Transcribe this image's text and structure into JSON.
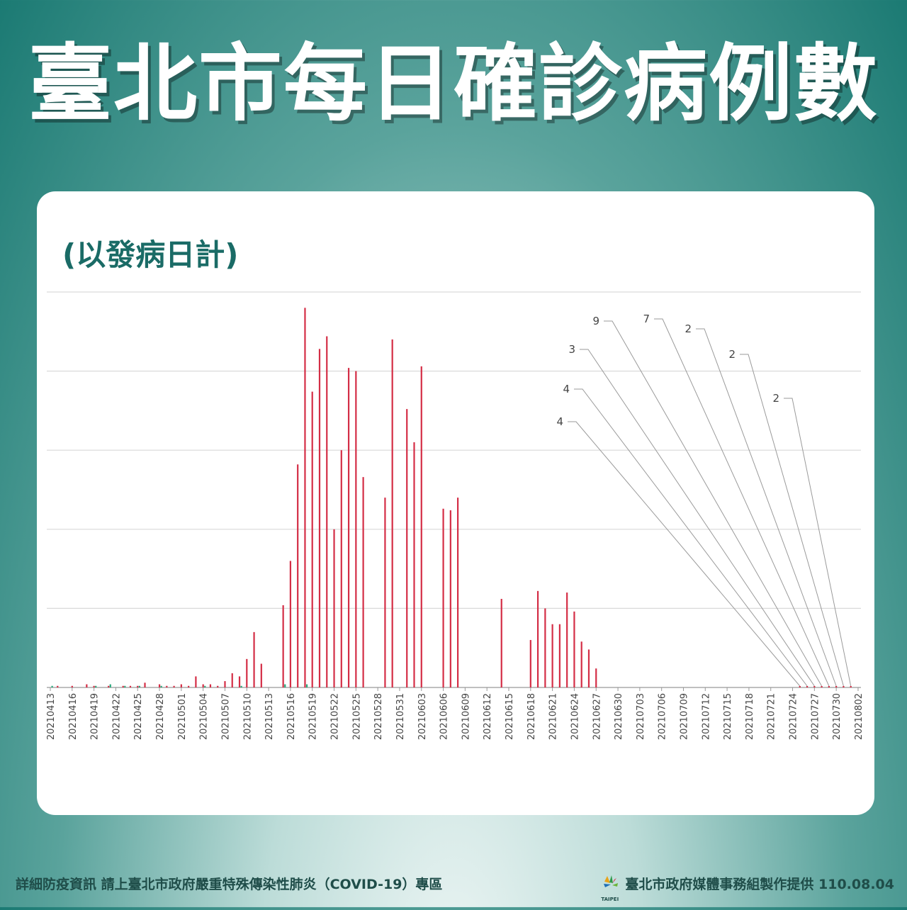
{
  "header": {
    "title": "臺北市每日確診病例數"
  },
  "chart_data": {
    "type": "bar",
    "subtitle": "(以發病日計)",
    "title": "臺北市每日確診病例數",
    "xlabel": "",
    "ylabel": "",
    "ylim": [
      0,
      250
    ],
    "grid": true,
    "tick_labels": [
      "20210413",
      "20210416",
      "20210419",
      "20210422",
      "20210425",
      "20210428",
      "20210501",
      "20210504",
      "20210507",
      "20210510",
      "20210513",
      "20210516",
      "20210519",
      "20210522",
      "20210525",
      "20210528",
      "20210531",
      "20210603",
      "20210606",
      "20210609",
      "20210612",
      "20210615",
      "20210618",
      "20210621",
      "20210624",
      "20210627",
      "20210630",
      "20210703",
      "20210706",
      "20210709",
      "20210712",
      "20210715",
      "20210718",
      "20210721",
      "20210724",
      "20210727",
      "20210730",
      "20210802"
    ],
    "first_date": "20210413",
    "series": [
      {
        "values": [
          0,
          1,
          0,
          1,
          0,
          2,
          1,
          0,
          1,
          0,
          1,
          1,
          1,
          3,
          0,
          2,
          1,
          1,
          2,
          1,
          7,
          2,
          2,
          1,
          4,
          9,
          7,
          18,
          35,
          15,
          0,
          0,
          52,
          80,
          141,
          240,
          187,
          214,
          222,
          100,
          150,
          202,
          200,
          133,
          0,
          0,
          120,
          220,
          0,
          176,
          155,
          203,
          0,
          0,
          113,
          112,
          120,
          0,
          0,
          0,
          0,
          0,
          56,
          0,
          0,
          0,
          30,
          61,
          50,
          40,
          40,
          60,
          48,
          29,
          24,
          12,
          0,
          0,
          0,
          0,
          0,
          0,
          0,
          0,
          0,
          0,
          0,
          0,
          0,
          0,
          0,
          0,
          0,
          0,
          0,
          0,
          0,
          0,
          0,
          0,
          0,
          0,
          0,
          0,
          0,
          0,
          0,
          0,
          0,
          0,
          0,
          0,
          0,
          0,
          0,
          0
        ]
      },
      {
        "values": [
          1,
          0,
          0,
          0,
          0,
          0,
          1,
          0,
          2,
          0,
          1,
          0,
          1,
          0,
          0,
          1,
          0,
          0,
          0,
          0,
          0,
          1,
          0,
          0,
          0,
          0,
          1,
          0,
          0,
          0,
          0,
          0,
          2,
          0,
          0,
          2,
          0,
          0,
          0,
          0,
          0,
          0,
          0,
          0,
          0,
          0,
          0,
          0,
          0,
          0,
          0,
          0,
          0,
          0,
          0,
          0,
          0,
          0,
          0,
          0,
          0,
          0,
          0,
          0,
          0,
          0,
          0,
          0,
          0,
          0,
          0,
          0,
          0,
          0,
          0,
          0,
          0,
          0,
          0,
          0,
          0,
          0,
          0,
          0,
          0,
          0,
          0,
          0,
          0,
          0,
          0,
          0,
          0,
          0,
          0,
          0,
          0,
          0,
          0,
          0,
          0,
          0,
          0,
          0,
          0,
          0,
          0,
          0,
          0,
          0,
          0,
          0,
          0,
          0
        ]
      }
    ],
    "callouts": [
      {
        "date": "20210725",
        "label": "4"
      },
      {
        "date": "20210726",
        "label": "4"
      },
      {
        "date": "20210727",
        "label": "3"
      },
      {
        "date": "20210728",
        "label": "9"
      },
      {
        "date": "20210729",
        "label": "7"
      },
      {
        "date": "20210730",
        "label": "2"
      },
      {
        "date": "20210731",
        "label": "2"
      },
      {
        "date": "20210801",
        "label": "2"
      }
    ],
    "colors": {
      "confirmed": "#d42e46",
      "local": "#2aa87c",
      "grid": "#d9d9d9",
      "axis": "#999999",
      "callout_line": "#9a9a9a"
    }
  },
  "footer": {
    "left_text": "詳細防疫資訊 請上臺北市政府嚴重特殊傳染性肺炎（COVID-19）專區",
    "logo_text": "TAIPEI",
    "right_text": "臺北市政府媒體事務組製作提供 110.08.04"
  }
}
